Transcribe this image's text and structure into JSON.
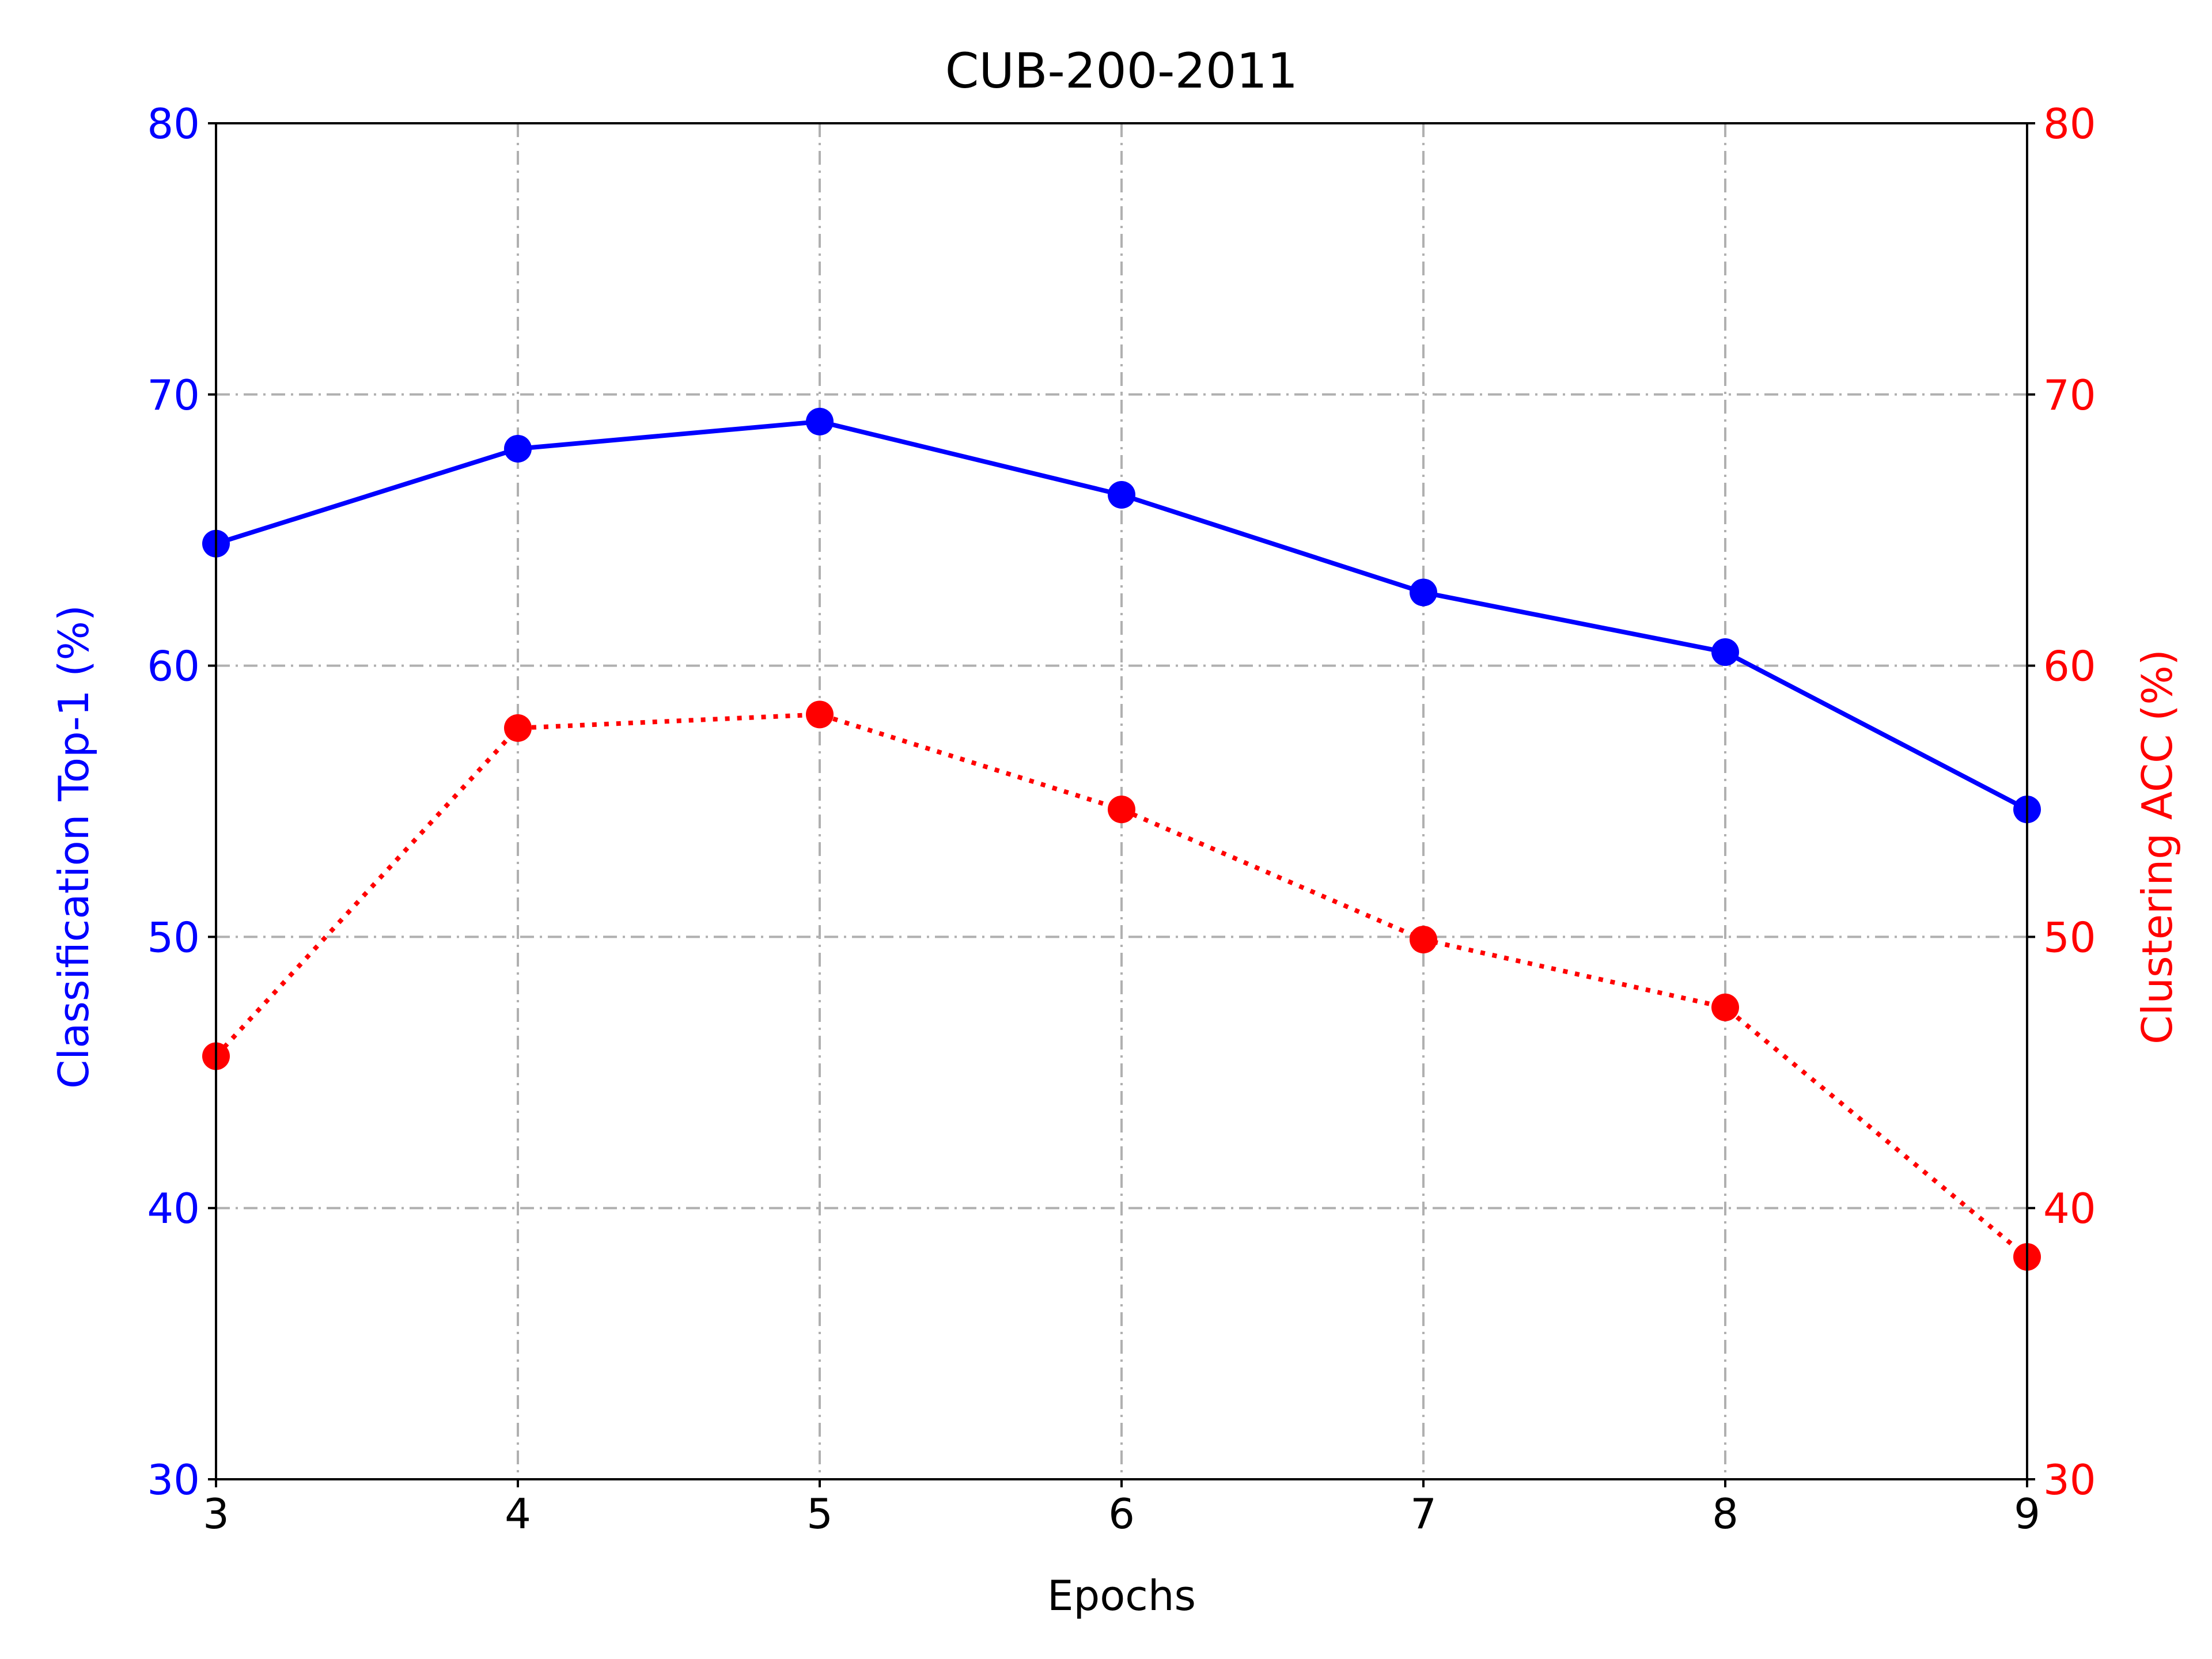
{
  "chart_data": {
    "type": "line",
    "title": "CUB-200-2011",
    "xlabel": "Epochs",
    "ylabel": "Classification Top-1 (%)",
    "y2label": "Clustering ACC (%)",
    "x": [
      3,
      4,
      5,
      6,
      7,
      8,
      9
    ],
    "xlim": [
      3,
      9
    ],
    "ylim": [
      30,
      80
    ],
    "y2lim": [
      30,
      80
    ],
    "xticks": [
      "3",
      "4",
      "5",
      "6",
      "7",
      "8",
      "9"
    ],
    "yticks": [
      "30",
      "40",
      "50",
      "60",
      "70",
      "80"
    ],
    "y2ticks": [
      "30",
      "40",
      "50",
      "60",
      "70",
      "80"
    ],
    "grid": true,
    "series": [
      {
        "axis": "left",
        "color": "#0000ff",
        "line_style": "solid",
        "marker": "circle",
        "values": [
          64.5,
          68.0,
          69.0,
          66.3,
          62.7,
          60.5,
          54.7
        ]
      },
      {
        "axis": "right",
        "color": "#ff0000",
        "line_style": "dotted",
        "marker": "circle",
        "values": [
          45.6,
          57.7,
          58.2,
          54.7,
          49.9,
          47.4,
          38.2
        ]
      }
    ],
    "colors": {
      "left_axis": "#0000ff",
      "right_axis": "#ff0000",
      "grid": "#b0b0b0",
      "frame": "#000000"
    }
  }
}
